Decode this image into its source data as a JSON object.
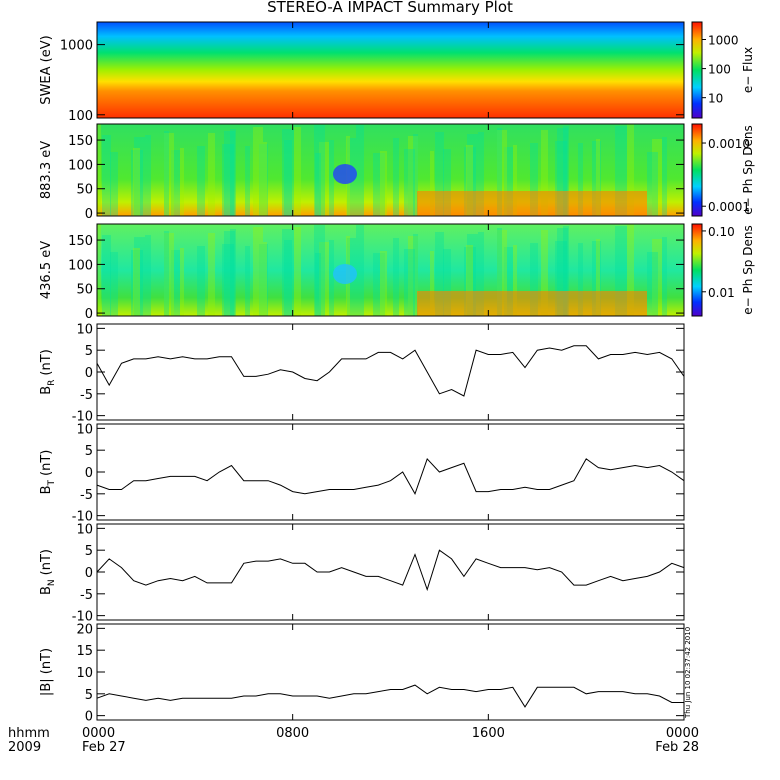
{
  "title": "STEREO-A IMPACT Summary Plot",
  "xaxis": {
    "xlim": [
      0,
      24
    ],
    "xticks": [
      {
        "value": 0,
        "label": "0000"
      },
      {
        "value": 8,
        "label": "0800"
      },
      {
        "value": 16,
        "label": "1600"
      },
      {
        "value": 24,
        "label": "0000"
      }
    ],
    "corner_labels": [
      "hhmm",
      "2009"
    ],
    "date_labels": [
      "Feb 27",
      "Feb 28"
    ]
  },
  "timestamp": "Thu Jun 10 02:37:42 2010",
  "chart_data": [
    {
      "type": "spectrogram",
      "ylabel": "SWEA (eV)",
      "ylim": [
        90,
        2100
      ],
      "log": true,
      "yticks": [
        100,
        1000
      ],
      "clabel": "e− Flux",
      "clim": [
        2,
        4000
      ],
      "cticks": [
        10,
        100,
        1000
      ]
    },
    {
      "type": "spectrogram",
      "ylabel": "883.3 eV",
      "ylim": [
        -6,
        183
      ],
      "log": false,
      "yticks": [
        0,
        50,
        100,
        150
      ],
      "clabel": "e− Ph Sp Dens",
      "clim": [
        7e-05,
        0.002
      ],
      "cticks": [
        0.0001,
        {
          "value": 0.001,
          "label": "0.0010"
        }
      ]
    },
    {
      "type": "spectrogram",
      "ylabel": "436.5 eV",
      "ylim": [
        -6,
        183
      ],
      "log": false,
      "yticks": [
        0,
        50,
        100,
        150
      ],
      "clabel": "e− Ph Sp Dens",
      "clim": [
        0.004,
        0.13
      ],
      "cticks": [
        0.01,
        {
          "value": 0.1,
          "label": "0.10"
        }
      ]
    },
    {
      "type": "line",
      "ylabel": "B",
      "ylabel_sub": "R",
      "ylabel_unit": "(nT)",
      "ylim": [
        -11,
        11
      ],
      "yticks": [
        -10,
        -5,
        0,
        5,
        10
      ],
      "color": "#000000",
      "x": [
        0,
        0.5,
        1,
        1.5,
        2,
        2.5,
        3,
        3.5,
        4,
        4.5,
        5,
        5.5,
        6,
        6.5,
        7,
        7.5,
        8,
        8.5,
        9,
        9.5,
        10,
        10.5,
        11,
        11.5,
        12,
        12.5,
        13,
        13.5,
        14,
        14.5,
        15,
        15.5,
        16,
        16.5,
        17,
        17.5,
        18,
        18.5,
        19,
        19.5,
        20,
        20.5,
        21,
        21.5,
        22,
        22.5,
        23,
        23.5,
        24
      ],
      "values": [
        2,
        -3,
        2,
        3,
        3,
        3.5,
        3,
        3.5,
        3,
        3,
        3.5,
        3.5,
        -1,
        -1,
        -0.5,
        0.5,
        0,
        -1.5,
        -2,
        0,
        3,
        3,
        3,
        4.5,
        4.5,
        3,
        5,
        0,
        -5,
        -4,
        -5.5,
        5,
        4,
        4,
        4.5,
        1,
        5,
        5.5,
        5,
        6,
        6,
        3,
        4,
        4,
        4.5,
        4,
        4.5,
        3,
        -1
      ]
    },
    {
      "type": "line",
      "ylabel": "B",
      "ylabel_sub": "T",
      "ylabel_unit": "(nT)",
      "ylim": [
        -11,
        11
      ],
      "yticks": [
        -10,
        -5,
        0,
        5,
        10
      ],
      "color": "#000000",
      "x": [
        0,
        0.5,
        1,
        1.5,
        2,
        2.5,
        3,
        3.5,
        4,
        4.5,
        5,
        5.5,
        6,
        6.5,
        7,
        7.5,
        8,
        8.5,
        9,
        9.5,
        10,
        10.5,
        11,
        11.5,
        12,
        12.5,
        13,
        13.5,
        14,
        14.5,
        15,
        15.5,
        16,
        16.5,
        17,
        17.5,
        18,
        18.5,
        19,
        19.5,
        20,
        20.5,
        21,
        21.5,
        22,
        22.5,
        23,
        23.5,
        24
      ],
      "values": [
        -3,
        -4,
        -4,
        -2,
        -2,
        -1.5,
        -1,
        -1,
        -1,
        -2,
        0,
        1.5,
        -2,
        -2,
        -2,
        -3,
        -4.5,
        -5,
        -4.5,
        -4,
        -4,
        -4,
        -3.5,
        -3,
        -2,
        0,
        -5,
        3,
        0,
        1,
        2,
        -4.5,
        -4.5,
        -4,
        -4,
        -3.5,
        -4,
        -4,
        -3,
        -2,
        3,
        1,
        0.5,
        1,
        1.5,
        1,
        1.5,
        0,
        -2
      ]
    },
    {
      "type": "line",
      "ylabel": "B",
      "ylabel_sub": "N",
      "ylabel_unit": "(nT)",
      "ylim": [
        -11,
        11
      ],
      "yticks": [
        -10,
        -5,
        0,
        5,
        10
      ],
      "color": "#000000",
      "x": [
        0,
        0.5,
        1,
        1.5,
        2,
        2.5,
        3,
        3.5,
        4,
        4.5,
        5,
        5.5,
        6,
        6.5,
        7,
        7.5,
        8,
        8.5,
        9,
        9.5,
        10,
        10.5,
        11,
        11.5,
        12,
        12.5,
        13,
        13.5,
        14,
        14.5,
        15,
        15.5,
        16,
        16.5,
        17,
        17.5,
        18,
        18.5,
        19,
        19.5,
        20,
        20.5,
        21,
        21.5,
        22,
        22.5,
        23,
        23.5,
        24
      ],
      "values": [
        0,
        3,
        1,
        -2,
        -3,
        -2,
        -1.5,
        -2,
        -1,
        -2.5,
        -2.5,
        -2.5,
        2,
        2.5,
        2.5,
        3,
        2,
        2,
        0,
        0,
        1,
        0,
        -1,
        -1,
        -2,
        -3,
        4,
        -4,
        5,
        3,
        -1,
        3,
        2,
        1,
        1,
        1,
        0.5,
        1,
        0,
        -3,
        -3,
        -2,
        -1,
        -2,
        -1.5,
        -1,
        0,
        2,
        1
      ]
    },
    {
      "type": "line",
      "ylabel": "|B| (nT)",
      "ylim": [
        -1,
        21
      ],
      "yticks": [
        0,
        5,
        10,
        15,
        20
      ],
      "color": "#000000",
      "x": [
        0,
        0.5,
        1,
        1.5,
        2,
        2.5,
        3,
        3.5,
        4,
        4.5,
        5,
        5.5,
        6,
        6.5,
        7,
        7.5,
        8,
        8.5,
        9,
        9.5,
        10,
        10.5,
        11,
        11.5,
        12,
        12.5,
        13,
        13.5,
        14,
        14.5,
        15,
        15.5,
        16,
        16.5,
        17,
        17.5,
        18,
        18.5,
        19,
        19.5,
        20,
        20.5,
        21,
        21.5,
        22,
        22.5,
        23,
        23.5,
        24
      ],
      "values": [
        4,
        5,
        4.5,
        4,
        3.5,
        4,
        3.5,
        4,
        4,
        4,
        4,
        4,
        4.5,
        4.5,
        5,
        5,
        4.5,
        4.5,
        4.5,
        4,
        4.5,
        5,
        5,
        5.5,
        6,
        6,
        7,
        5,
        6.5,
        6,
        6,
        5.5,
        6,
        6,
        6.5,
        2,
        6.5,
        6.5,
        6.5,
        6.5,
        5,
        5.5,
        5.5,
        5.5,
        5,
        5,
        4.5,
        3,
        3
      ]
    }
  ]
}
